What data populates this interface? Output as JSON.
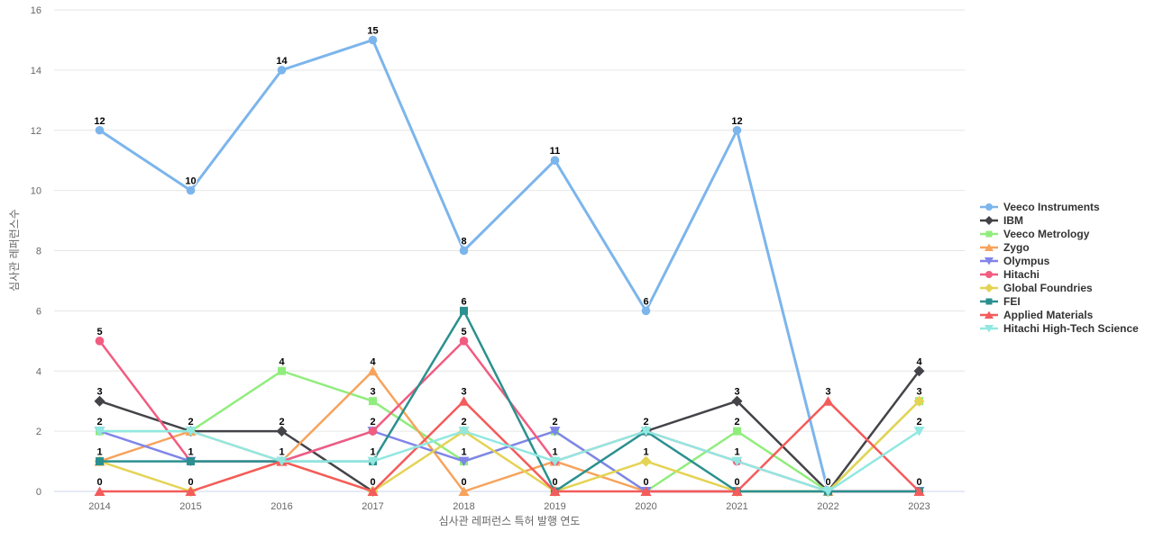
{
  "chart_data": {
    "type": "line",
    "title": "",
    "xlabel": "심사관 레퍼런스 특허 발행 연도",
    "ylabel": "심사관 레퍼런스수",
    "categories": [
      "2014",
      "2015",
      "2016",
      "2017",
      "2018",
      "2019",
      "2020",
      "2021",
      "2022",
      "2023"
    ],
    "ylim": [
      0,
      16
    ],
    "ytick_step": 2,
    "grid": true,
    "legend_position": "right",
    "data_labels": true,
    "axis_colors": {
      "grid_line": "#e6e6e6",
      "zero_line": "#ccd6eb",
      "tick_text": "#666666",
      "legend_text": "#333333",
      "data_label_text": "#000000"
    },
    "series": [
      {
        "name": "Veeco Instruments",
        "color": "#7cb5ec",
        "marker": "circle",
        "values": [
          12,
          10,
          14,
          15,
          8,
          11,
          6,
          12,
          0,
          0
        ]
      },
      {
        "name": "IBM",
        "color": "#434348",
        "marker": "diamond",
        "values": [
          3,
          2,
          2,
          0,
          null,
          null,
          2,
          3,
          0,
          4
        ]
      },
      {
        "name": "Veeco Metrology",
        "color": "#90ed7d",
        "marker": "square",
        "values": [
          2,
          2,
          4,
          3,
          1,
          2,
          0,
          2,
          0,
          3
        ]
      },
      {
        "name": "Zygo",
        "color": "#f7a35c",
        "marker": "triangle",
        "values": [
          1,
          2,
          1,
          4,
          0,
          1,
          0,
          0,
          0,
          0
        ]
      },
      {
        "name": "Olympus",
        "color": "#8085e9",
        "marker": "triangle-down",
        "values": [
          2,
          1,
          1,
          2,
          1,
          2,
          0,
          0,
          0,
          0
        ]
      },
      {
        "name": "Hitachi",
        "color": "#f15c80",
        "marker": "circle",
        "values": [
          5,
          1,
          1,
          2,
          5,
          1,
          2,
          1,
          0,
          0
        ]
      },
      {
        "name": "Global Foundries",
        "color": "#e4d354",
        "marker": "diamond",
        "values": [
          1,
          0,
          1,
          0,
          2,
          0,
          1,
          0,
          0,
          3
        ]
      },
      {
        "name": "FEI",
        "color": "#2b908f",
        "marker": "square",
        "values": [
          1,
          1,
          1,
          1,
          6,
          0,
          2,
          0,
          0,
          0
        ]
      },
      {
        "name": "Applied Materials",
        "color": "#f45b5b",
        "marker": "triangle",
        "values": [
          0,
          0,
          1,
          0,
          3,
          0,
          0,
          0,
          3,
          0
        ]
      },
      {
        "name": "Hitachi High-Tech Science",
        "color": "#91e8e1",
        "marker": "triangle-down",
        "values": [
          2,
          2,
          1,
          1,
          2,
          1,
          2,
          1,
          0,
          2
        ]
      }
    ]
  }
}
